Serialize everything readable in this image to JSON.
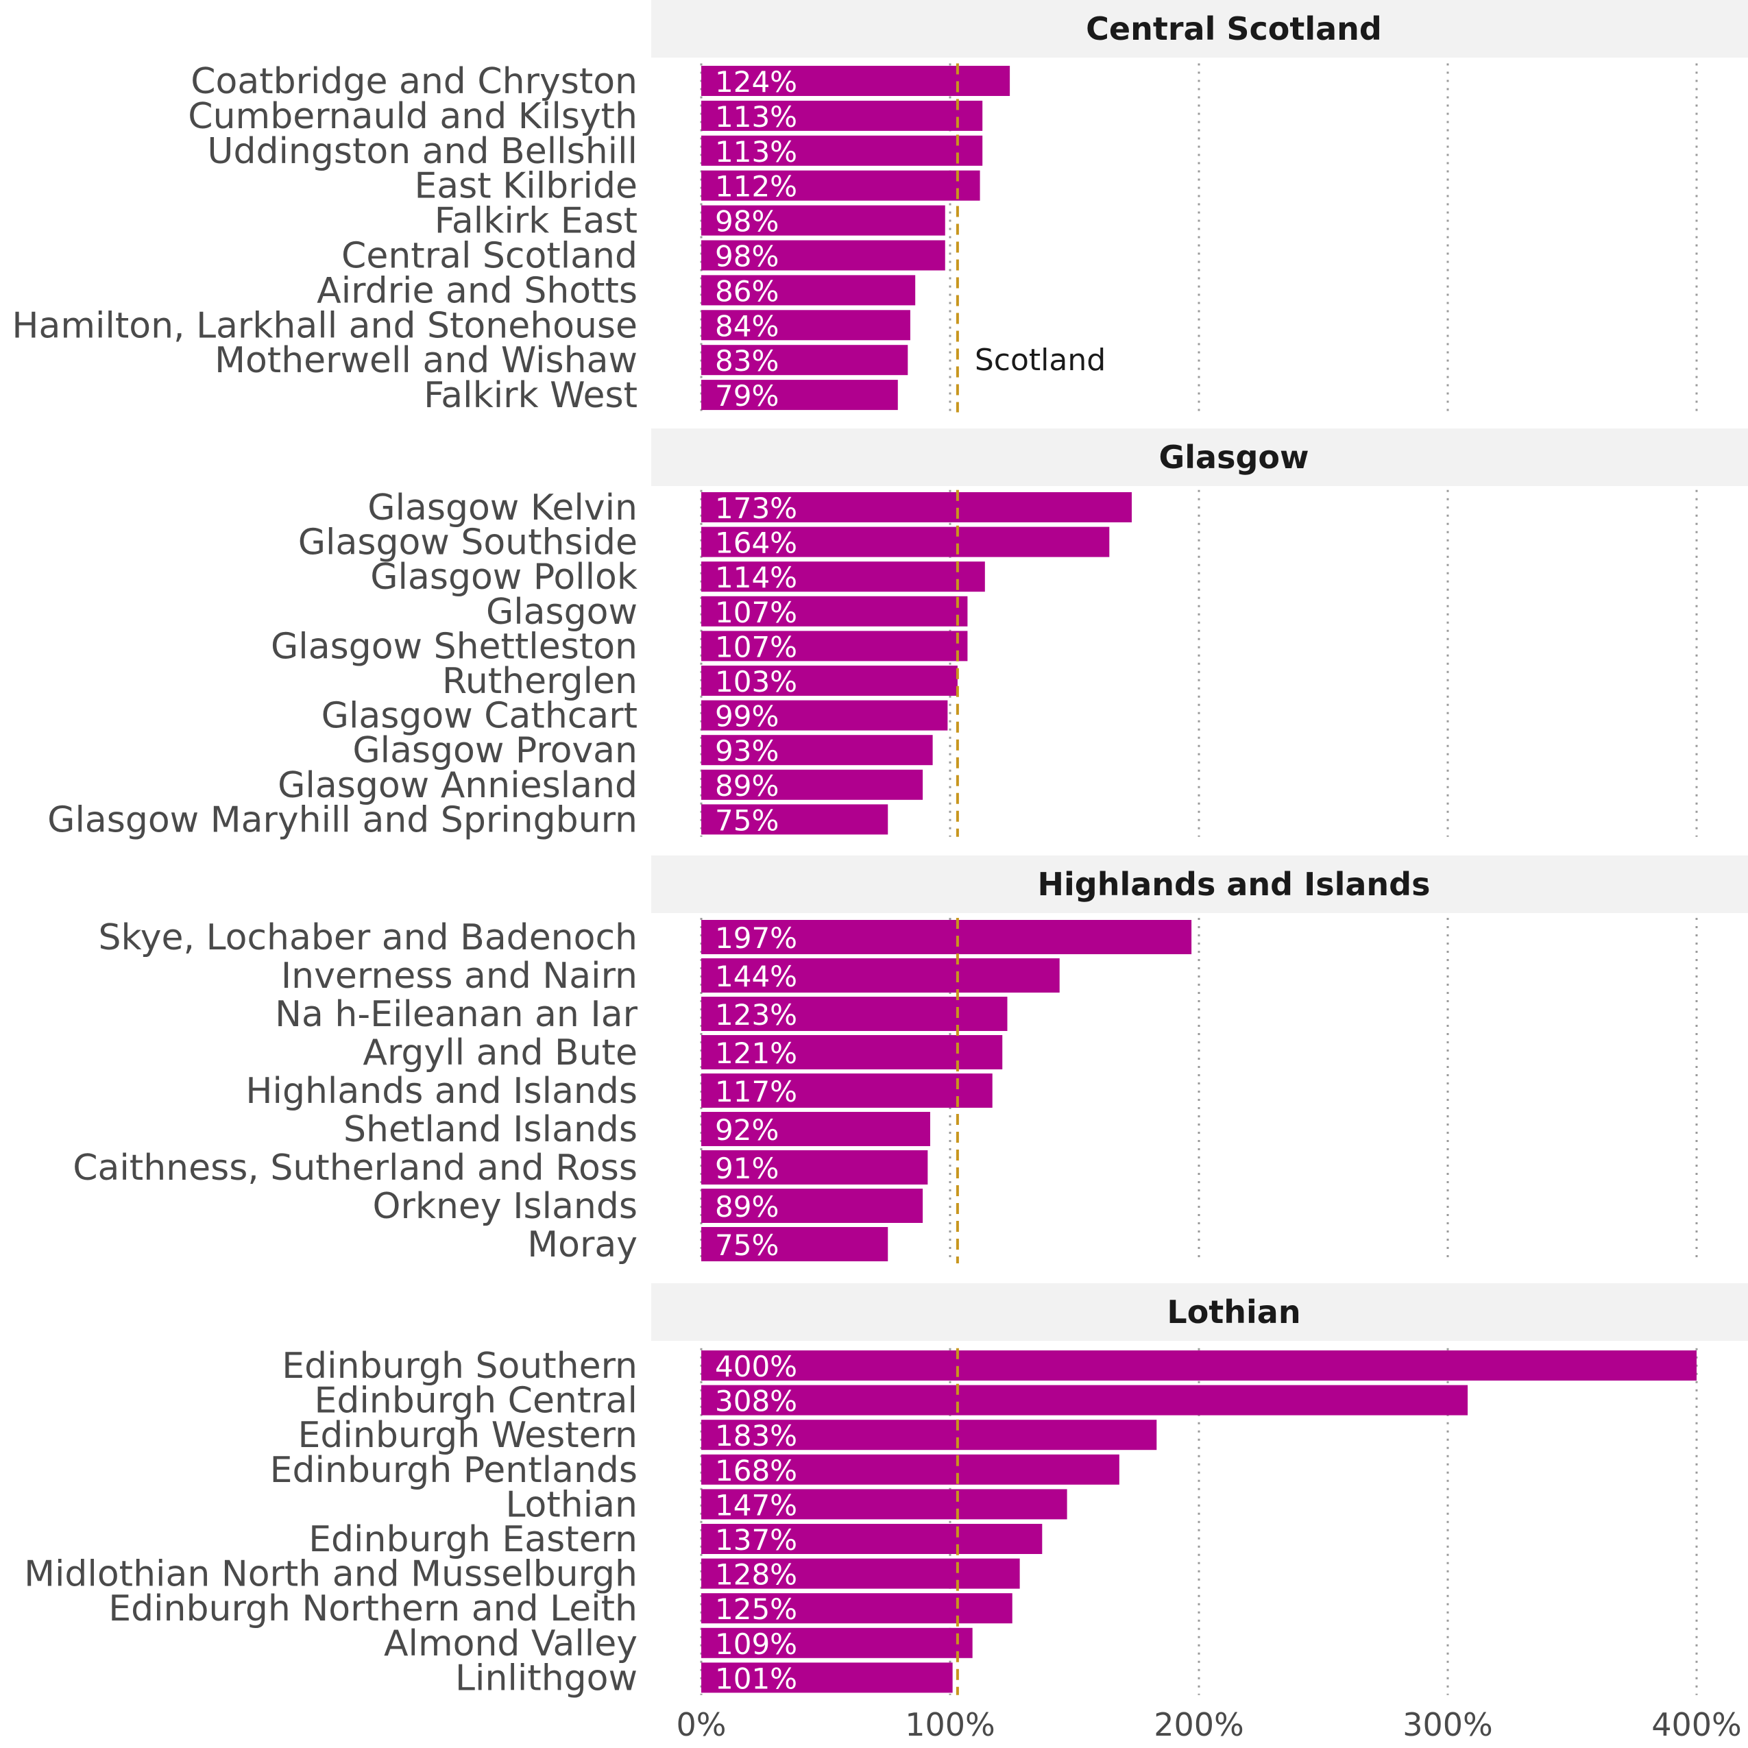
{
  "chart_data": {
    "type": "bar",
    "orientation": "horizontal",
    "x_ticks": [
      "0%",
      "100%",
      "200%",
      "300%",
      "400%"
    ],
    "xlim": [
      0,
      400
    ],
    "grid": "dotted vertical",
    "reference_line": {
      "label": "Scotland",
      "value": 103,
      "panel": "Central Scotland"
    },
    "colors": {
      "bar": "#b0008e",
      "reference": "#c8961e",
      "grid": "#9a9a9a",
      "strip": "#f2f2f2"
    },
    "panels": [
      {
        "title": "Central Scotland",
        "categories": [
          "Coatbridge and Chryston",
          "Cumbernauld and Kilsyth",
          "Uddingston and Bellshill",
          "East Kilbride",
          "Falkirk East",
          "Central Scotland",
          "Airdrie and Shotts",
          "Hamilton, Larkhall and Stonehouse",
          "Motherwell and Wishaw",
          "Falkirk West"
        ],
        "values": [
          124,
          113,
          113,
          112,
          98,
          98,
          86,
          84,
          83,
          79
        ],
        "labels": [
          "124%",
          "113%",
          "113%",
          "112%",
          "98%",
          "98%",
          "86%",
          "84%",
          "83%",
          "79%"
        ]
      },
      {
        "title": "Glasgow",
        "categories": [
          "Glasgow Kelvin",
          "Glasgow Southside",
          "Glasgow Pollok",
          "Glasgow",
          "Glasgow Shettleston",
          "Rutherglen",
          "Glasgow Cathcart",
          "Glasgow Provan",
          "Glasgow Anniesland",
          "Glasgow Maryhill and Springburn"
        ],
        "values": [
          173,
          164,
          114,
          107,
          107,
          103,
          99,
          93,
          89,
          75
        ],
        "labels": [
          "173%",
          "164%",
          "114%",
          "107%",
          "107%",
          "103%",
          "99%",
          "93%",
          "89%",
          "75%"
        ]
      },
      {
        "title": "Highlands and Islands",
        "categories": [
          "Skye, Lochaber and Badenoch",
          "Inverness and Nairn",
          "Na h-Eileanan an Iar",
          "Argyll and Bute",
          "Highlands and Islands",
          "Shetland Islands",
          "Caithness, Sutherland and Ross",
          "Orkney Islands",
          "Moray"
        ],
        "values": [
          197,
          144,
          123,
          121,
          117,
          92,
          91,
          89,
          75
        ],
        "labels": [
          "197%",
          "144%",
          "123%",
          "121%",
          "117%",
          "92%",
          "91%",
          "89%",
          "75%"
        ]
      },
      {
        "title": "Lothian",
        "categories": [
          "Edinburgh Southern",
          "Edinburgh Central",
          "Edinburgh Western",
          "Edinburgh Pentlands",
          "Lothian",
          "Edinburgh Eastern",
          "Midlothian North and Musselburgh",
          "Edinburgh Northern and Leith",
          "Almond Valley",
          "Linlithgow"
        ],
        "values": [
          400,
          308,
          183,
          168,
          147,
          137,
          128,
          125,
          109,
          101
        ],
        "labels": [
          "400%",
          "308%",
          "183%",
          "168%",
          "147%",
          "137%",
          "128%",
          "125%",
          "109%",
          "101%"
        ]
      }
    ]
  }
}
